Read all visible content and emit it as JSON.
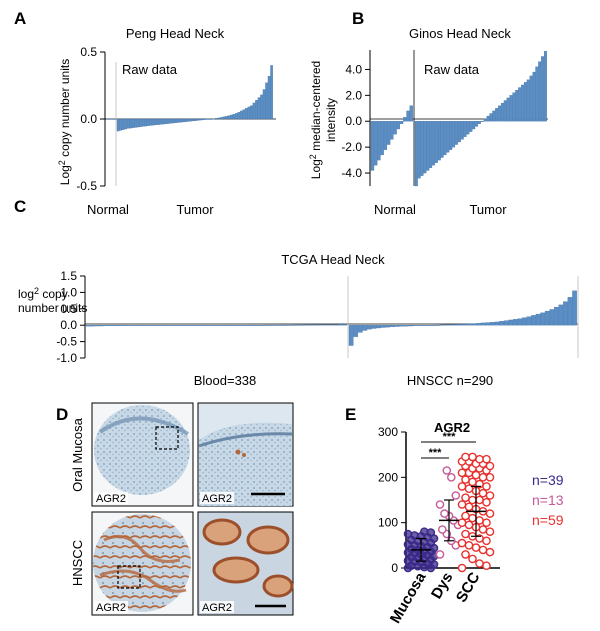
{
  "figure": {
    "panel_letters": {
      "a": "A",
      "b": "B",
      "c": "C",
      "d": "D",
      "e": "E"
    },
    "colors": {
      "bar": "#5b8ec4",
      "mucosa": "#3c2a8a",
      "dys": "#c45a9a",
      "scc": "#e8312e",
      "tissue_blue": "#b9cfe0",
      "stain_brown": "#b5673b"
    }
  },
  "chart_data": [
    {
      "panel": "A",
      "type": "bar",
      "title": "Peng Head Neck",
      "annotation": "Raw data",
      "ylabel": "Log",
      "ylabel_sup": "2",
      "ylabel_rest": " copy number units",
      "yticks": [
        "0.5",
        "0.0",
        "-0.5"
      ],
      "ylim": [
        -0.5,
        0.5
      ],
      "group_labels": [
        "Normal",
        "Tumor"
      ],
      "groups": [
        {
          "name": "Normal",
          "values": [
            0.0
          ]
        },
        {
          "name": "Tumor",
          "values": [
            -0.09,
            -0.085,
            -0.08,
            -0.075,
            -0.07,
            -0.068,
            -0.065,
            -0.063,
            -0.06,
            -0.058,
            -0.055,
            -0.053,
            -0.05,
            -0.048,
            -0.046,
            -0.044,
            -0.042,
            -0.04,
            -0.038,
            -0.036,
            -0.034,
            -0.032,
            -0.03,
            -0.028,
            -0.026,
            -0.024,
            -0.022,
            -0.02,
            -0.018,
            -0.016,
            -0.014,
            -0.012,
            -0.01,
            -0.008,
            -0.006,
            -0.004,
            -0.002,
            0.0,
            0.002,
            0.005,
            0.008,
            0.012,
            0.016,
            0.02,
            0.025,
            0.03,
            0.036,
            0.042,
            0.05,
            0.06,
            0.07,
            0.08,
            0.09,
            0.1,
            0.12,
            0.14,
            0.16,
            0.18,
            0.22,
            0.27,
            0.32,
            0.4
          ]
        }
      ]
    },
    {
      "panel": "B",
      "type": "bar",
      "title": "Ginos Head Neck",
      "annotation": "Raw data",
      "ylabel": "Log",
      "ylabel_sup": "2",
      "ylabel_rest": " median-centered",
      "ylabel2": "intensity",
      "yticks": [
        "4.0",
        "2.0",
        "0.0",
        "-2.0",
        "-4.0"
      ],
      "ylim": [
        -5,
        5.5
      ],
      "group_labels": [
        "Normal",
        "Tumor"
      ],
      "groups": [
        {
          "name": "Normal",
          "values": [
            -3.8,
            -3.4,
            -3.0,
            -2.6,
            -2.2,
            -1.8,
            -1.4,
            -1.0,
            -0.6,
            -0.2,
            0.3,
            0.8,
            1.2
          ]
        },
        {
          "name": "Tumor",
          "values": [
            -5.0,
            -4.4,
            -4.2,
            -4.0,
            -3.8,
            -3.6,
            -3.4,
            -3.2,
            -3.0,
            -2.8,
            -2.6,
            -2.4,
            -2.2,
            -2.0,
            -1.8,
            -1.6,
            -1.4,
            -1.2,
            -1.0,
            -0.8,
            -0.6,
            -0.4,
            -0.2,
            0.0,
            0.2,
            0.4,
            0.6,
            0.8,
            1.0,
            1.2,
            1.4,
            1.6,
            1.8,
            2.0,
            2.2,
            2.4,
            2.6,
            2.8,
            3.0,
            3.2,
            3.5,
            3.8,
            4.2,
            4.6,
            5.0,
            5.4
          ]
        }
      ]
    },
    {
      "panel": "C",
      "type": "bar",
      "title": "TCGA Head Neck",
      "ylabel": "log",
      "ylabel_sup": "2",
      "ylabel_rest": " copy",
      "ylabel2": "number units",
      "yticks": [
        "1.5",
        "1.0",
        "0.5",
        "0.0",
        "-0.5",
        "-1.0"
      ],
      "ylim": [
        -1.0,
        1.5
      ],
      "group_labels": [
        "Blood=338",
        "HNSCC n=290"
      ],
      "groups": [
        {
          "name": "Blood",
          "count": 338,
          "values": [
            -0.03,
            -0.025,
            -0.02,
            -0.02,
            -0.018,
            -0.015,
            -0.012,
            -0.01,
            -0.01,
            -0.008,
            -0.006,
            -0.005,
            -0.004,
            -0.003,
            -0.002,
            -0.001,
            0.0,
            0.0,
            0.001,
            0.002,
            0.003,
            0.004,
            0.005,
            0.006,
            0.008,
            0.01,
            0.012,
            0.015,
            0.02,
            0.03
          ]
        },
        {
          "name": "HNSCC",
          "count": 290,
          "values": [
            -0.62,
            -0.35,
            -0.22,
            -0.16,
            -0.12,
            -0.1,
            -0.085,
            -0.07,
            -0.06,
            -0.05,
            -0.04,
            -0.035,
            -0.03,
            -0.025,
            -0.02,
            -0.015,
            -0.01,
            -0.005,
            0.0,
            0.005,
            0.01,
            0.015,
            0.02,
            0.025,
            0.03,
            0.035,
            0.04,
            0.05,
            0.06,
            0.07,
            0.08,
            0.09,
            0.1,
            0.12,
            0.14,
            0.16,
            0.18,
            0.2,
            0.23,
            0.26,
            0.3,
            0.34,
            0.38,
            0.43,
            0.48,
            0.55,
            0.62,
            0.72,
            0.85,
            1.05
          ]
        }
      ]
    },
    {
      "panel": "E",
      "type": "scatter",
      "title": "AGR2",
      "categories": [
        "Mucosa",
        "Dys",
        "SCC"
      ],
      "ylim": [
        0,
        300
      ],
      "yticks": [
        "0",
        "100",
        "200",
        "300"
      ],
      "significance": [
        "***",
        "***"
      ],
      "counts": [
        "n=39",
        "n=13",
        "n=59"
      ],
      "series": [
        {
          "name": "Mucosa",
          "mean": 40,
          "sd": 25,
          "values": [
            0,
            0,
            2,
            4,
            5,
            8,
            10,
            12,
            14,
            16,
            18,
            20,
            22,
            24,
            26,
            28,
            30,
            32,
            34,
            36,
            38,
            40,
            42,
            44,
            46,
            48,
            50,
            52,
            55,
            58,
            60,
            62,
            65,
            68,
            70,
            72,
            75,
            78,
            80
          ]
        },
        {
          "name": "Dys",
          "mean": 105,
          "sd": 45,
          "values": [
            30,
            50,
            60,
            75,
            85,
            95,
            105,
            115,
            120,
            140,
            160,
            200,
            215
          ]
        },
        {
          "name": "SCC",
          "mean": 125,
          "sd": 55,
          "values": [
            0,
            5,
            10,
            20,
            30,
            35,
            40,
            45,
            50,
            55,
            60,
            65,
            70,
            75,
            80,
            85,
            90,
            95,
            100,
            100,
            105,
            110,
            115,
            120,
            125,
            130,
            135,
            140,
            145,
            150,
            150,
            155,
            160,
            165,
            170,
            175,
            180,
            180,
            185,
            190,
            195,
            200,
            200,
            205,
            210,
            210,
            215,
            220,
            220,
            225,
            225,
            230,
            230,
            235,
            235,
            240,
            240,
            245,
            245
          ]
        }
      ]
    }
  ],
  "panel_d": {
    "row_labels": [
      "Oral Mucosa",
      "HNSCC"
    ],
    "stain_label": "AGR2"
  }
}
